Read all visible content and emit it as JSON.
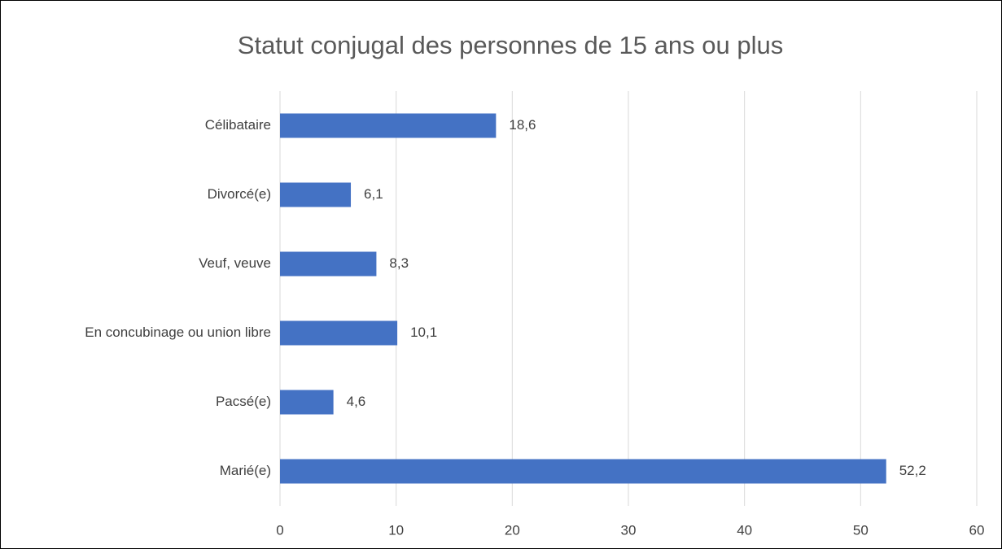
{
  "chart_data": {
    "type": "bar",
    "orientation": "horizontal",
    "title": "Statut conjugal des personnes de 15 ans ou plus",
    "categories": [
      "Célibataire",
      "Divorcé(e)",
      "Veuf, veuve",
      "En concubinage ou union libre",
      "Pacsé(e)",
      "Marié(e)"
    ],
    "values": [
      18.6,
      6.1,
      8.3,
      10.1,
      4.6,
      52.2
    ],
    "value_labels": [
      "18,6",
      "6,1",
      "8,3",
      "10,1",
      "4,6",
      "52,2"
    ],
    "color": "#4472c4",
    "xlim": [
      0,
      60
    ],
    "xticks": [
      0,
      10,
      20,
      30,
      40,
      50,
      60
    ],
    "grid": true
  }
}
